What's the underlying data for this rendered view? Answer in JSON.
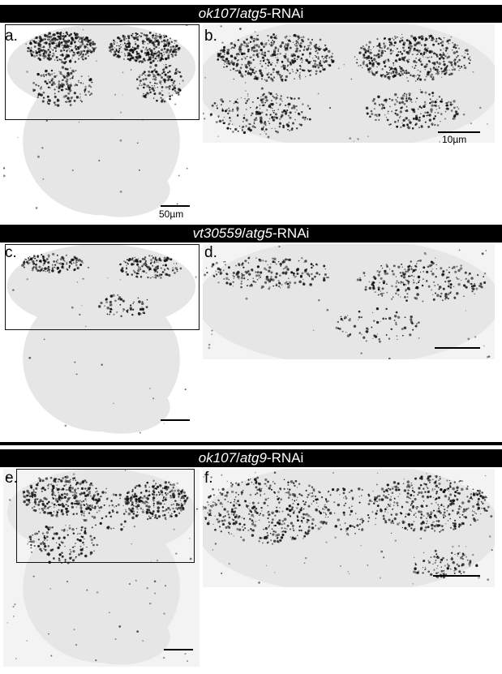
{
  "rows": [
    {
      "title_italic_1": "ok107",
      "title_sep": "/",
      "title_italic_2": "atg5",
      "title_suffix": "-RNAi",
      "left_label": "a.",
      "right_label": "b.",
      "left_scale": "50µm",
      "right_scale": "10µm"
    },
    {
      "title_italic_1": "vt30559",
      "title_sep": "/",
      "title_italic_2": "atg5",
      "title_suffix": "-RNAi",
      "left_label": "c.",
      "right_label": "d.",
      "left_scale": "",
      "right_scale": ""
    },
    {
      "title_italic_1": "ok107",
      "title_sep": "/",
      "title_italic_2": "atg9",
      "title_suffix": "-RNAi",
      "left_label": "e.",
      "right_label": "f.",
      "left_scale": "",
      "right_scale": ""
    }
  ],
  "colors": {
    "bar": "#000000",
    "stain": "#111111",
    "tissue": "#e6e6e6",
    "background": "#f5f5f5"
  },
  "icons": [
    "scale-bar"
  ]
}
